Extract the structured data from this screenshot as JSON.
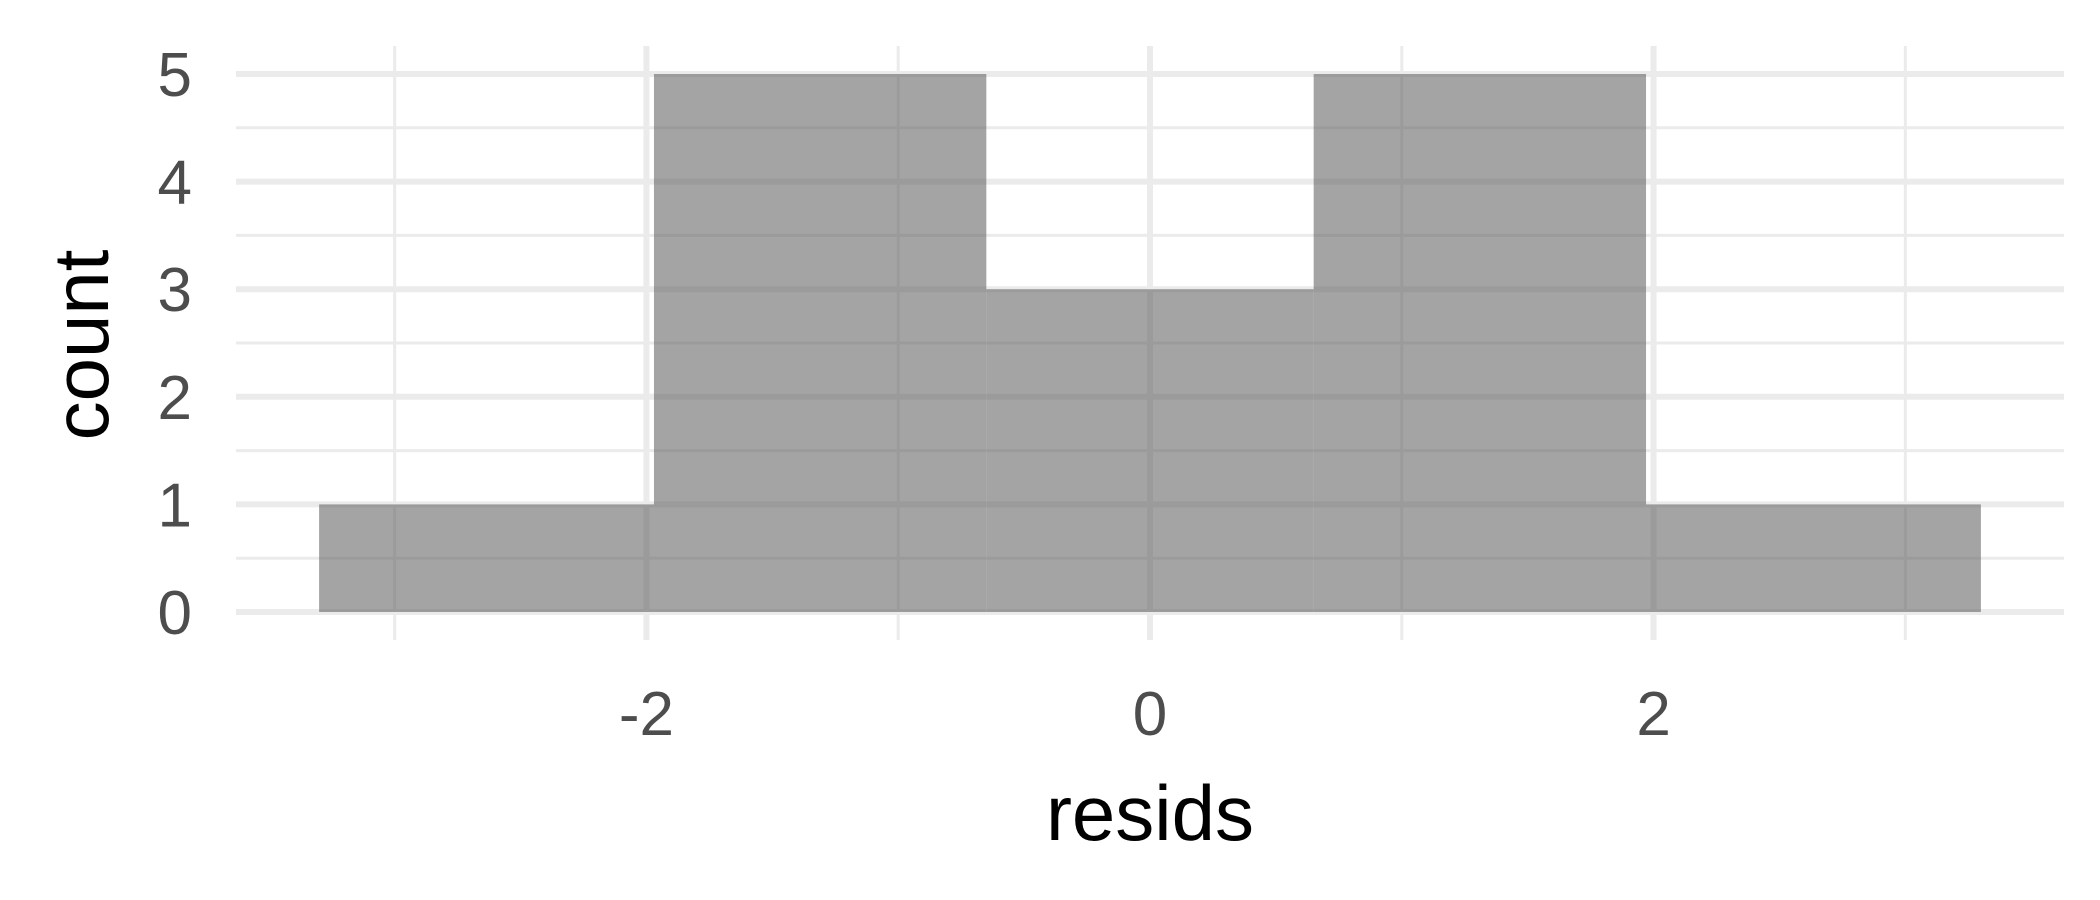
{
  "chart_data": {
    "type": "bar",
    "subtype": "histogram",
    "title": "",
    "xlabel": "resids",
    "ylabel": "count",
    "bins": [
      {
        "x_min": -3.3,
        "x_max": -1.97,
        "count": 1
      },
      {
        "x_min": -1.97,
        "x_max": -0.65,
        "count": 5
      },
      {
        "x_min": -0.65,
        "x_max": 0.65,
        "count": 3
      },
      {
        "x_min": 0.65,
        "x_max": 1.97,
        "count": 5
      },
      {
        "x_min": 1.97,
        "x_max": 3.3,
        "count": 1
      }
    ],
    "xlim": [
      -3.63,
      3.63
    ],
    "ylim": [
      0,
      5
    ],
    "x_ticks": [
      -2,
      0,
      2
    ],
    "y_ticks": [
      0,
      1,
      2,
      3,
      4,
      5
    ],
    "x_minor_ticks": [
      -3,
      -1,
      1,
      3
    ],
    "y_minor_ticks": [
      0.5,
      1.5,
      2.5,
      3.5,
      4.5
    ],
    "grid": true,
    "legend": "none",
    "colors": {
      "bar_fill": "#595959",
      "bar_opacity": 0.55,
      "grid": "#ebebeb",
      "tick_text": "#4d4d4d",
      "axis_title": "#000000",
      "background": "#ffffff"
    }
  }
}
